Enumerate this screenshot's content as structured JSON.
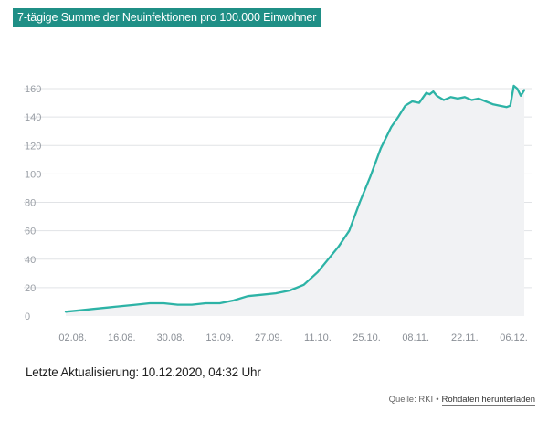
{
  "header": {
    "title": "7-tägige Summe der Neuinfektionen pro 100.000 Einwohner"
  },
  "footer": {
    "updated": "Letzte Aktualisierung: 10.12.2020, 04:32 Uhr",
    "source": "Quelle: RKI",
    "separator": "•",
    "download_link": "Rohdaten herunterladen"
  },
  "colors": {
    "accent": "#2db3a6",
    "area": "#f1f2f4",
    "title_bg": "#1f8f86"
  },
  "chart_data": {
    "type": "area",
    "title": "7-tägige Summe der Neuinfektionen pro 100.000 Einwohner",
    "xlabel": "",
    "ylabel": "",
    "ylim": [
      0,
      160
    ],
    "yticks": [
      0,
      20,
      40,
      60,
      80,
      100,
      120,
      140,
      160
    ],
    "grid": true,
    "xlim": [
      "2020-07-31",
      "2020-12-09"
    ],
    "xtick_labels": [
      "02.08.",
      "16.08.",
      "30.08.",
      "13.09.",
      "27.09.",
      "11.10.",
      "25.10.",
      "08.11.",
      "22.11.",
      "06.12."
    ],
    "xtick_dates": [
      "2020-08-02",
      "2020-08-16",
      "2020-08-30",
      "2020-09-13",
      "2020-09-27",
      "2020-10-11",
      "2020-10-25",
      "2020-11-08",
      "2020-11-22",
      "2020-12-06"
    ],
    "series": [
      {
        "x": [
          "2020-07-31",
          "2020-08-04",
          "2020-08-08",
          "2020-08-12",
          "2020-08-16",
          "2020-08-20",
          "2020-08-24",
          "2020-08-28",
          "2020-09-01",
          "2020-09-05",
          "2020-09-09",
          "2020-09-13",
          "2020-09-17",
          "2020-09-21",
          "2020-09-25",
          "2020-09-29",
          "2020-10-03",
          "2020-10-07",
          "2020-10-11",
          "2020-10-14",
          "2020-10-17",
          "2020-10-20",
          "2020-10-23",
          "2020-10-26",
          "2020-10-29",
          "2020-11-01",
          "2020-11-03",
          "2020-11-05",
          "2020-11-07",
          "2020-11-09",
          "2020-11-11",
          "2020-11-12",
          "2020-11-13",
          "2020-11-14",
          "2020-11-16",
          "2020-11-18",
          "2020-11-20",
          "2020-11-22",
          "2020-11-24",
          "2020-11-26",
          "2020-11-28",
          "2020-11-30",
          "2020-12-02",
          "2020-12-04",
          "2020-12-05",
          "2020-12-06",
          "2020-12-07",
          "2020-12-08",
          "2020-12-09"
        ],
        "values": [
          3,
          4,
          5,
          6,
          7,
          8,
          9,
          9,
          8,
          8,
          9,
          9,
          11,
          14,
          15,
          16,
          18,
          22,
          31,
          40,
          49,
          60,
          80,
          98,
          118,
          133,
          140,
          148,
          151,
          150,
          157,
          156,
          158,
          155,
          152,
          154,
          153,
          154,
          152,
          153,
          151,
          149,
          148,
          147,
          148,
          162,
          160,
          155,
          159
        ]
      }
    ]
  }
}
